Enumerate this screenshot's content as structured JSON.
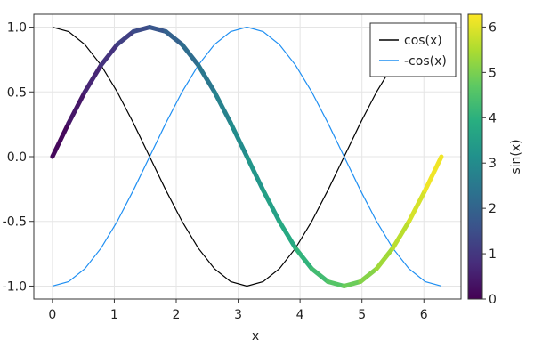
{
  "chart_data": {
    "type": "line",
    "title": "",
    "xlabel": "x",
    "ylabel": "",
    "xlim": [
      -0.3,
      6.6
    ],
    "ylim": [
      -1.1,
      1.1
    ],
    "x_ticks": [
      0,
      1,
      2,
      3,
      4,
      5,
      6
    ],
    "x_tick_labels": [
      "0",
      "1",
      "2",
      "3",
      "4",
      "5",
      "6"
    ],
    "y_ticks": [
      -1.0,
      -0.5,
      0.0,
      0.5,
      1.0
    ],
    "y_tick_labels": [
      "-1.0",
      "-0.5",
      "0.0",
      "0.5",
      "1.0"
    ],
    "grid": true,
    "legend_position": "top-right",
    "x": [
      0,
      0.2618,
      0.5236,
      0.7854,
      1.0472,
      1.309,
      1.5708,
      1.8326,
      2.0944,
      2.3562,
      2.618,
      2.8798,
      3.1416,
      3.4034,
      3.6652,
      3.927,
      4.1888,
      4.4506,
      4.7124,
      4.9742,
      5.236,
      5.4978,
      5.7596,
      6.0214,
      6.2832
    ],
    "series": [
      {
        "name": "cos(x)",
        "color": "#000000",
        "values": [
          1.0,
          0.966,
          0.866,
          0.707,
          0.5,
          0.259,
          0.0,
          -0.259,
          -0.5,
          -0.707,
          -0.866,
          -0.966,
          -1.0,
          -0.966,
          -0.866,
          -0.707,
          -0.5,
          -0.259,
          0.0,
          0.259,
          0.5,
          0.707,
          0.866,
          0.966,
          1.0
        ]
      },
      {
        "name": "-cos(x)",
        "color": "#1f8ff2",
        "values": [
          -1.0,
          -0.966,
          -0.866,
          -0.707,
          -0.5,
          -0.259,
          0.0,
          0.259,
          0.5,
          0.707,
          0.866,
          0.966,
          1.0,
          0.966,
          0.866,
          0.707,
          0.5,
          0.259,
          0.0,
          -0.259,
          -0.5,
          -0.707,
          -0.866,
          -0.966,
          -1.0
        ]
      },
      {
        "name": "",
        "color_by": "x",
        "colormap": "viridis",
        "values": [
          0.0,
          0.259,
          0.5,
          0.707,
          0.866,
          0.966,
          1.0,
          0.966,
          0.866,
          0.707,
          0.5,
          0.259,
          0.0,
          -0.259,
          -0.5,
          -0.707,
          -0.866,
          -0.966,
          -1.0,
          -0.966,
          -0.866,
          -0.707,
          -0.5,
          -0.259,
          0.0
        ]
      }
    ],
    "colorbar": {
      "label": "sin(x)",
      "range": [
        0,
        6.2832
      ],
      "ticks": [
        0,
        1,
        2,
        3,
        4,
        5,
        6
      ],
      "tick_labels": [
        "0",
        "1",
        "2",
        "3",
        "4",
        "5",
        "6"
      ],
      "colors": [
        "#440154",
        "#472d7b",
        "#3b528b",
        "#2c728e",
        "#21918c",
        "#28ae80",
        "#5ec962",
        "#addc30",
        "#fde725"
      ]
    }
  }
}
